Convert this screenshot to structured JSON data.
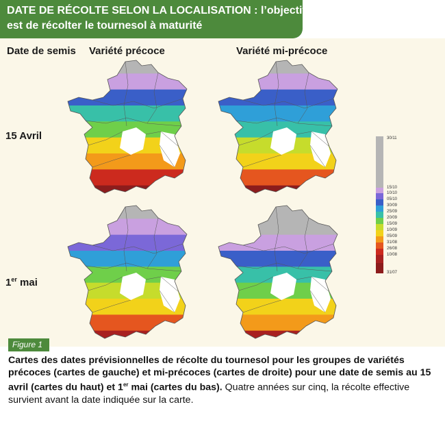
{
  "title": {
    "line1": "DATE DE RÉCOLTE SELON LA LOCALISATION : l’objectif",
    "line2": "est de récolter le tournesol à maturité"
  },
  "headers": {
    "sowing_date": "Date de semis",
    "early_variety": "Variété précoce",
    "semi_early_variety": "Variété mi-précoce"
  },
  "rows": {
    "april": "15 Avril",
    "may_number": "1",
    "may_sup": "er",
    "may_word": " mai"
  },
  "legend": {
    "labels": [
      "30/11",
      "15/10",
      "10/10",
      "05/10",
      "30/09",
      "25/09",
      "20/09",
      "15/09",
      "10/09",
      "05/09",
      "31/08",
      "26/08",
      "10/08",
      "31/07"
    ],
    "colors": {
      "30/11": "#b5b5b5",
      "15/10": "#c9a0e0",
      "10/10": "#7b68d8",
      "05/10": "#3a5fc8",
      "30/09": "#2f9fd8",
      "25/09": "#38c0a8",
      "20/09": "#6fcf4a",
      "15/09": "#c6dc2c",
      "10/09": "#f2d21a",
      "05/09": "#f39a1a",
      "31/08": "#e5561f",
      "26/08": "#cc2a1e",
      "10/08": "#a82020",
      "31/07": "#8c1c1c"
    }
  },
  "maps": [
    {
      "name": "april-early",
      "zones": [
        "#b5b5b5",
        "#c9a0e0",
        "#3a5fc8",
        "#38c0a8",
        "#6fcf4a",
        "#f2d21a",
        "#f39a1a",
        "#cc2a1e",
        "#8c1c1c"
      ]
    },
    {
      "name": "april-semi-early",
      "zones": [
        "#b5b5b5",
        "#c9a0e0",
        "#3a5fc8",
        "#2f9fd8",
        "#38c0a8",
        "#c6dc2c",
        "#f2d21a",
        "#e5561f",
        "#8c1c1c"
      ]
    },
    {
      "name": "may-early",
      "zones": [
        "#b5b5b5",
        "#c9a0e0",
        "#7b68d8",
        "#2f9fd8",
        "#6fcf4a",
        "#c6dc2c",
        "#f2d21a",
        "#e5561f",
        "#a82020"
      ]
    },
    {
      "name": "may-semi-early",
      "zones": [
        "#b5b5b5",
        "#b5b5b5",
        "#c9a0e0",
        "#3a5fc8",
        "#38c0a8",
        "#6fcf4a",
        "#f2d21a",
        "#f39a1a",
        "#a82020"
      ]
    }
  ],
  "figure_label": "Figure 1",
  "caption": {
    "bold1": "Cartes des dates prévisionnelles de récolte du tournesol pour les groupes de variétés précoces (cartes de gauche) et mi-précoces (cartes de droite) pour une date de semis au 15 avril (cartes du haut) et 1",
    "sup": "er",
    "bold2": " mai (cartes du bas).",
    "normal": " Quatre années sur cinq, la récolte effective survient avant la date indiquée sur la carte."
  }
}
